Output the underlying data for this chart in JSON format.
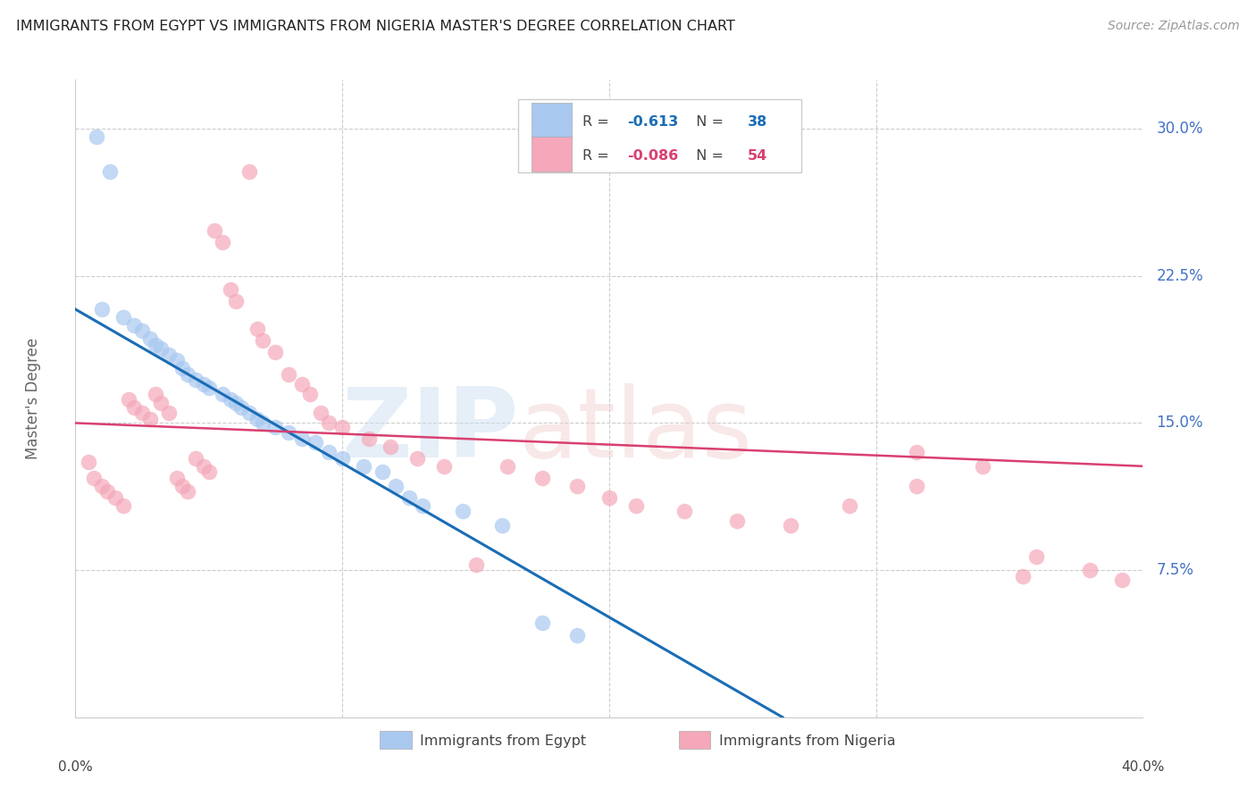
{
  "title": "IMMIGRANTS FROM EGYPT VS IMMIGRANTS FROM NIGERIA MASTER'S DEGREE CORRELATION CHART",
  "source": "Source: ZipAtlas.com",
  "ylabel": "Master's Degree",
  "egypt_R": -0.613,
  "egypt_N": 38,
  "nigeria_R": -0.086,
  "nigeria_N": 54,
  "egypt_color": "#A8C8F0",
  "nigeria_color": "#F4A8BA",
  "egypt_line_color": "#1A6DB5",
  "nigeria_line_color": "#D94070",
  "right_tick_color": "#4472C4",
  "xmin": 0.0,
  "xmax": 0.4,
  "ymin": 0.0,
  "ymax": 0.325,
  "yticks": [
    0.0,
    0.075,
    0.15,
    0.225,
    0.3
  ],
  "xticks": [
    0.0,
    0.1,
    0.2,
    0.3,
    0.4
  ],
  "egypt_x": [
    0.008,
    0.013,
    0.01,
    0.018,
    0.022,
    0.025,
    0.028,
    0.03,
    0.032,
    0.035,
    0.038,
    0.04,
    0.042,
    0.045,
    0.048,
    0.05,
    0.055,
    0.058,
    0.06,
    0.062,
    0.065,
    0.068,
    0.07,
    0.075,
    0.08,
    0.085,
    0.09,
    0.095,
    0.1,
    0.108,
    0.115,
    0.12,
    0.125,
    0.13,
    0.145,
    0.16,
    0.175,
    0.188
  ],
  "egypt_y": [
    0.296,
    0.278,
    0.208,
    0.204,
    0.2,
    0.197,
    0.193,
    0.19,
    0.188,
    0.185,
    0.182,
    0.178,
    0.175,
    0.172,
    0.17,
    0.168,
    0.165,
    0.162,
    0.16,
    0.158,
    0.155,
    0.152,
    0.15,
    0.148,
    0.145,
    0.142,
    0.14,
    0.135,
    0.132,
    0.128,
    0.125,
    0.118,
    0.112,
    0.108,
    0.105,
    0.098,
    0.048,
    0.042
  ],
  "nigeria_x": [
    0.005,
    0.007,
    0.01,
    0.012,
    0.015,
    0.018,
    0.02,
    0.022,
    0.025,
    0.028,
    0.03,
    0.032,
    0.035,
    0.038,
    0.04,
    0.042,
    0.045,
    0.048,
    0.05,
    0.052,
    0.055,
    0.058,
    0.06,
    0.065,
    0.068,
    0.07,
    0.075,
    0.08,
    0.085,
    0.088,
    0.092,
    0.095,
    0.1,
    0.11,
    0.118,
    0.128,
    0.138,
    0.15,
    0.162,
    0.175,
    0.188,
    0.2,
    0.21,
    0.228,
    0.248,
    0.268,
    0.29,
    0.315,
    0.34,
    0.36,
    0.38,
    0.392,
    0.355,
    0.315
  ],
  "nigeria_y": [
    0.13,
    0.122,
    0.118,
    0.115,
    0.112,
    0.108,
    0.162,
    0.158,
    0.155,
    0.152,
    0.165,
    0.16,
    0.155,
    0.122,
    0.118,
    0.115,
    0.132,
    0.128,
    0.125,
    0.248,
    0.242,
    0.218,
    0.212,
    0.278,
    0.198,
    0.192,
    0.186,
    0.175,
    0.17,
    0.165,
    0.155,
    0.15,
    0.148,
    0.142,
    0.138,
    0.132,
    0.128,
    0.078,
    0.128,
    0.122,
    0.118,
    0.112,
    0.108,
    0.105,
    0.1,
    0.098,
    0.108,
    0.118,
    0.128,
    0.082,
    0.075,
    0.07,
    0.072,
    0.135
  ],
  "egypt_line_x0": 0.0,
  "egypt_line_x1": 0.265,
  "egypt_line_y0": 0.208,
  "egypt_line_y1": 0.0,
  "nigeria_line_x0": 0.0,
  "nigeria_line_x1": 0.4,
  "nigeria_line_y0": 0.15,
  "nigeria_line_y1": 0.128
}
